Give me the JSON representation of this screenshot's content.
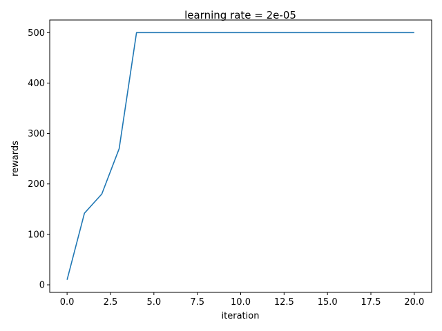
{
  "chart_data": {
    "type": "line",
    "title": "learning rate = 2e-05",
    "xlabel": "iteration",
    "ylabel": "rewards",
    "xlim": [
      -1,
      21
    ],
    "ylim": [
      -15,
      525
    ],
    "xticks": [
      0,
      2.5,
      5,
      7.5,
      10,
      12.5,
      15,
      17.5,
      20
    ],
    "xtick_labels": [
      "0.0",
      "2.5",
      "5.0",
      "7.5",
      "10.0",
      "12.5",
      "15.0",
      "17.5",
      "20.0"
    ],
    "yticks": [
      0,
      100,
      200,
      300,
      400,
      500
    ],
    "ytick_labels": [
      "0",
      "100",
      "200",
      "300",
      "400",
      "500"
    ],
    "grid": false,
    "series": [
      {
        "color": "#1f77b4",
        "x": [
          0,
          1,
          2,
          3,
          4,
          5,
          6,
          7,
          8,
          9,
          10,
          11,
          12,
          13,
          14,
          15,
          16,
          17,
          18,
          19,
          20
        ],
        "y": [
          10,
          142,
          180,
          270,
          500,
          500,
          500,
          500,
          500,
          500,
          500,
          500,
          500,
          500,
          500,
          500,
          500,
          500,
          500,
          500,
          500
        ]
      }
    ]
  }
}
